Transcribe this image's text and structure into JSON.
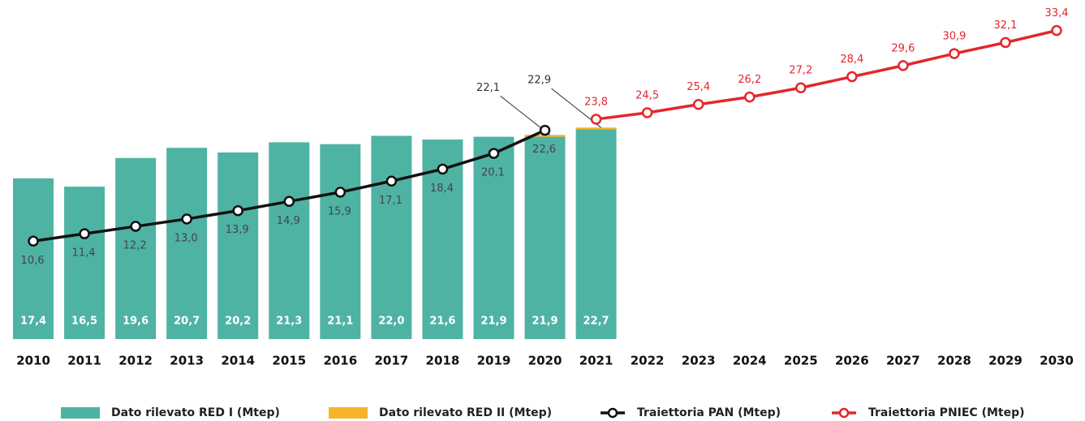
{
  "chart_data": {
    "type": "bar",
    "categories": [
      "2010",
      "2011",
      "2012",
      "2013",
      "2014",
      "2015",
      "2016",
      "2017",
      "2018",
      "2019",
      "2020",
      "2021",
      "2022",
      "2023",
      "2024",
      "2025",
      "2026",
      "2027",
      "2028",
      "2029",
      "2030"
    ],
    "ylim": [
      0,
      36
    ],
    "series": [
      {
        "name": "Dato rilevato RED I (Mtep)",
        "type": "bar",
        "color": "#4fb3a4",
        "values": [
          17.4,
          16.5,
          19.6,
          20.7,
          20.2,
          21.3,
          21.1,
          22.0,
          21.6,
          21.9,
          21.9,
          22.7,
          null,
          null,
          null,
          null,
          null,
          null,
          null,
          null,
          null
        ],
        "value_labels": [
          "17,4",
          "16,5",
          "19,6",
          "20,7",
          "20,2",
          "21,3",
          "21,1",
          "22,0",
          "21,6",
          "21,9",
          "21,9",
          "22,7",
          null,
          null,
          null,
          null,
          null,
          null,
          null,
          null,
          null
        ]
      },
      {
        "name": "Dato rilevato RED II (Mtep)",
        "type": "bar",
        "color": "#f7b32b",
        "values": [
          null,
          null,
          null,
          null,
          null,
          null,
          null,
          null,
          null,
          null,
          0.2,
          0.2,
          null,
          null,
          null,
          null,
          null,
          null,
          null,
          null,
          null
        ],
        "total_labels": [
          null,
          null,
          null,
          null,
          null,
          null,
          null,
          null,
          null,
          null,
          "22,1",
          "22,9",
          null,
          null,
          null,
          null,
          null,
          null,
          null,
          null,
          null
        ]
      },
      {
        "name": "Traiettoria PAN (Mtep)",
        "type": "line",
        "color": "#111111",
        "values": [
          10.6,
          11.4,
          12.2,
          13.0,
          13.9,
          14.9,
          15.9,
          17.1,
          18.4,
          20.1,
          22.6,
          null,
          null,
          null,
          null,
          null,
          null,
          null,
          null,
          null,
          null
        ],
        "value_labels": [
          "10,6",
          "11,4",
          "12,2",
          "13,0",
          "13,9",
          "14,9",
          "15,9",
          "17,1",
          "18,4",
          "20,1",
          "22,6",
          null,
          null,
          null,
          null,
          null,
          null,
          null,
          null,
          null,
          null
        ]
      },
      {
        "name": "Traiettoria PNIEC (Mtep)",
        "type": "line",
        "color": "#e4262c",
        "values": [
          null,
          null,
          null,
          null,
          null,
          null,
          null,
          null,
          null,
          null,
          null,
          23.8,
          24.5,
          25.4,
          26.2,
          27.2,
          28.4,
          29.6,
          30.9,
          32.1,
          33.4
        ],
        "value_labels": [
          null,
          null,
          null,
          null,
          null,
          null,
          null,
          null,
          null,
          null,
          null,
          "23,8",
          "24,5",
          "25,4",
          "26,2",
          "27,2",
          "28,4",
          "29,6",
          "30,9",
          "32,1",
          "33,4"
        ]
      }
    ]
  }
}
